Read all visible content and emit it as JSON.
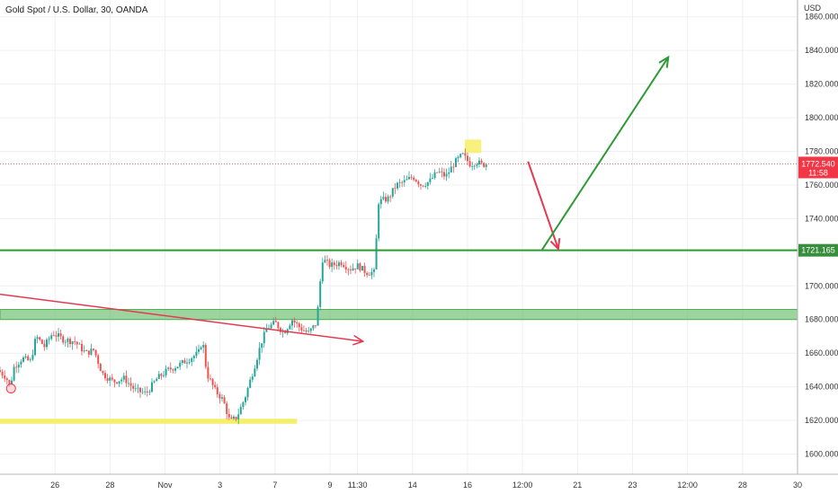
{
  "chart_data": {
    "type": "candlestick",
    "title": "Gold Spot / U.S. Dollar, 30, OANDA",
    "currency": "USD",
    "ylim": [
      1588,
      1870
    ],
    "y_ticks": [
      "1860.000",
      "1840.000",
      "1820.000",
      "1800.000",
      "1780.000",
      "1760.000",
      "1740.000",
      "1720.000",
      "1700.000",
      "1680.000",
      "1660.000",
      "1640.000",
      "1620.000",
      "1600.000"
    ],
    "y_tick_values": [
      1860,
      1840,
      1820,
      1800,
      1780,
      1760,
      1740,
      1720,
      1700,
      1680,
      1660,
      1640,
      1620,
      1600
    ],
    "x_ticks": [
      "26",
      "28",
      "Nov",
      "3",
      "7",
      "9",
      "11:30",
      "14",
      "16",
      "12:00",
      "21",
      "23",
      "12:00",
      "28",
      "30"
    ],
    "x_tick_values": [
      2,
      4,
      6,
      8,
      10,
      12,
      13,
      15,
      17,
      19,
      21,
      23,
      25,
      27,
      29
    ],
    "xlim": [
      0,
      29
    ],
    "last_price": {
      "label": "1772.540",
      "countdown": "11:58",
      "value": 1772.54,
      "color": "#f23645"
    },
    "level_tag": {
      "label": "1721.165",
      "value": 1721.165,
      "color": "#388e3c"
    },
    "price_path": [
      [
        0.0,
        1650
      ],
      [
        0.3,
        1646
      ],
      [
        0.45,
        1640
      ],
      [
        0.6,
        1652
      ],
      [
        0.9,
        1657
      ],
      [
        1.2,
        1655
      ],
      [
        1.4,
        1670
      ],
      [
        1.7,
        1664
      ],
      [
        2.0,
        1672
      ],
      [
        2.4,
        1668
      ],
      [
        2.8,
        1667
      ],
      [
        3.2,
        1660
      ],
      [
        3.5,
        1662
      ],
      [
        3.8,
        1648
      ],
      [
        4.2,
        1643
      ],
      [
        4.6,
        1645
      ],
      [
        5.0,
        1638
      ],
      [
        5.4,
        1636
      ],
      [
        5.8,
        1645
      ],
      [
        6.2,
        1650
      ],
      [
        6.6,
        1653
      ],
      [
        7.0,
        1657
      ],
      [
        7.3,
        1660
      ],
      [
        7.45,
        1668
      ],
      [
        7.6,
        1648
      ],
      [
        7.9,
        1638
      ],
      [
        8.2,
        1632
      ],
      [
        8.45,
        1619
      ],
      [
        8.7,
        1622
      ],
      [
        9.0,
        1634
      ],
      [
        9.3,
        1650
      ],
      [
        9.6,
        1667
      ],
      [
        9.8,
        1675
      ],
      [
        10.1,
        1678
      ],
      [
        10.4,
        1672
      ],
      [
        10.7,
        1680
      ],
      [
        11.0,
        1675
      ],
      [
        11.3,
        1672
      ],
      [
        11.6,
        1678
      ],
      [
        11.8,
        1716
      ],
      [
        12.1,
        1712
      ],
      [
        12.5,
        1714
      ],
      [
        12.8,
        1710
      ],
      [
        13.1,
        1712
      ],
      [
        13.4,
        1708
      ],
      [
        13.7,
        1708
      ],
      [
        13.85,
        1750
      ],
      [
        14.2,
        1752
      ],
      [
        14.5,
        1760
      ],
      [
        14.8,
        1762
      ],
      [
        15.1,
        1765
      ],
      [
        15.4,
        1760
      ],
      [
        15.7,
        1762
      ],
      [
        16.0,
        1768
      ],
      [
        16.3,
        1765
      ],
      [
        16.6,
        1773
      ],
      [
        16.9,
        1778
      ],
      [
        17.2,
        1772
      ],
      [
        17.4,
        1774
      ],
      [
        17.6,
        1772
      ],
      [
        17.75,
        1772.5
      ]
    ],
    "annotations": {
      "resistance_line": {
        "value": 1721.165,
        "color": "#2e9a35"
      },
      "zone": {
        "low": 1680,
        "high": 1686,
        "x_end": 29,
        "color": "#4caf50"
      },
      "support_zone": {
        "low": 1618,
        "high": 1621,
        "x_start": 0,
        "x_end": 10.8,
        "color": "#f5ec53"
      },
      "top_marker": {
        "x_start": 16.9,
        "x_end": 17.5,
        "low": 1779,
        "high": 1787,
        "color": "#f5ec53"
      },
      "circle_marker": {
        "x": 0.4,
        "y": 1639,
        "color": "#f23645"
      },
      "trend_arrow": {
        "from": [
          0,
          1695
        ],
        "to": [
          13.2,
          1667
        ],
        "color": "#e53950"
      },
      "down_arrow": {
        "from": [
          19.2,
          1774
        ],
        "to": [
          20.3,
          1722
        ],
        "color": "#e53950"
      },
      "up_arrow": {
        "from": [
          19.7,
          1721.2
        ],
        "to": [
          24.3,
          1836
        ],
        "color": "#2e9a35"
      }
    },
    "grid": true,
    "legend": "none"
  }
}
